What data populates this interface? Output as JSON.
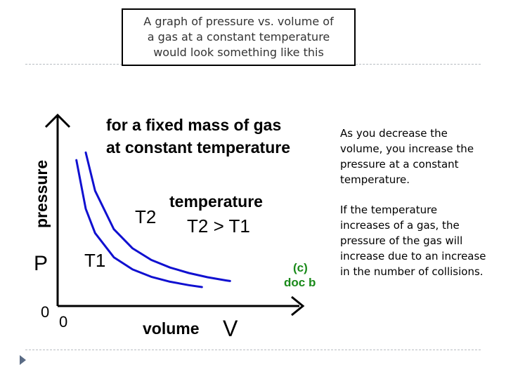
{
  "slide": {
    "title": "A graph of pressure vs. volume of\na gas at a constant temperature\nwould look something like this",
    "paragraphs": [
      "As you decrease the volume, you increase the pressure at a constant temperature.",
      "If the temperature increases of a gas, the pressure of the gas will increase due to an increase in the number of collisions."
    ],
    "nav_icon": "triangle-right-icon"
  },
  "chart_data": {
    "type": "line",
    "title_line1": "for a fixed mass of gas",
    "title_line2": "at constant temperature",
    "ylabel": "pressure",
    "ysymbol": "P",
    "xlabel": "volume",
    "xsymbol": "V",
    "y_origin_label": "0",
    "x_origin_label": "0",
    "note_line1": "temperature",
    "note_line2": "T2 > T1",
    "credit_line1": "(c)",
    "credit_line2": "doc b",
    "credit_color": "#1a8a1a",
    "series_color": "#1010d0",
    "series": [
      {
        "name": "T1",
        "x": [
          1.0,
          1.5,
          2.0,
          3.0,
          4.0,
          5.0,
          6.0,
          7.0,
          7.7
        ],
        "y": [
          7.7,
          5.13,
          3.85,
          2.57,
          1.93,
          1.54,
          1.28,
          1.1,
          1.0
        ]
      },
      {
        "name": "T2",
        "x": [
          1.5,
          2.0,
          3.0,
          4.0,
          5.0,
          6.0,
          7.0,
          8.0,
          9.0,
          9.2
        ],
        "y": [
          8.1,
          6.08,
          4.05,
          3.04,
          2.43,
          2.03,
          1.74,
          1.52,
          1.35,
          1.32
        ]
      }
    ],
    "xlim": [
      0,
      12
    ],
    "ylim": [
      0,
      10
    ],
    "grid": false,
    "legend": "none"
  }
}
